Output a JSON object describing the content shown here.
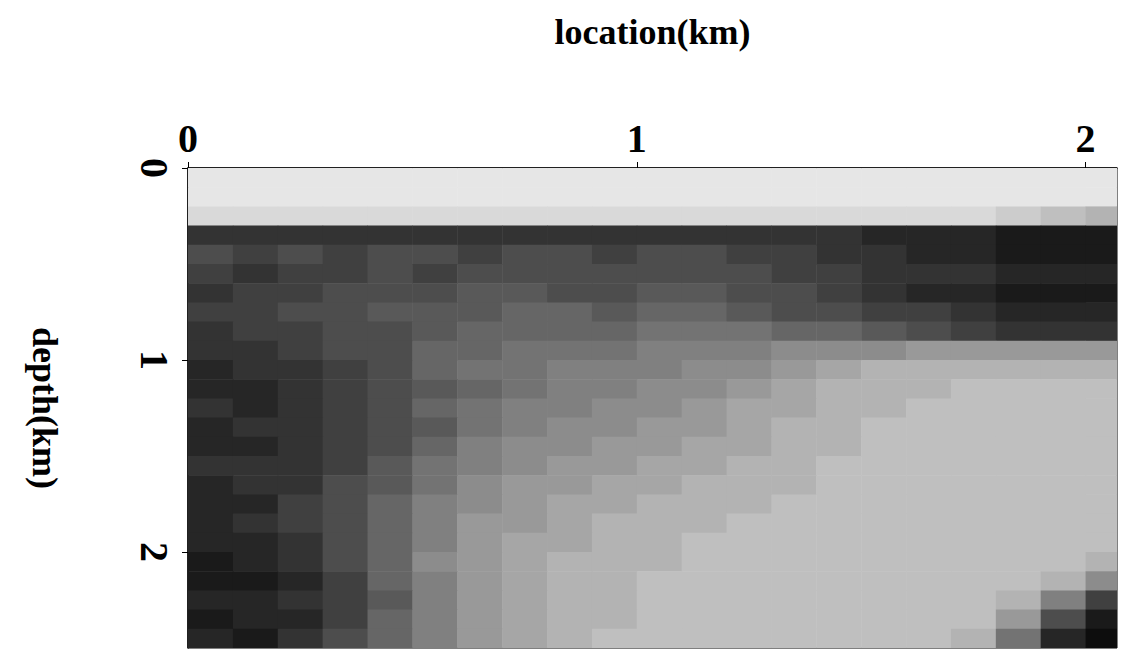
{
  "chart_data": {
    "type": "heatmap",
    "xlabel": "location(km)",
    "ylabel": "depth(km)",
    "x": [
      0.05,
      0.15,
      0.25,
      0.35,
      0.45,
      0.55,
      0.65,
      0.75,
      0.85,
      0.95,
      1.05,
      1.15,
      1.25,
      1.35,
      1.45,
      1.55,
      1.65,
      1.75,
      1.85,
      1.95,
      2.05
    ],
    "y": [
      0.05,
      0.15,
      0.25,
      0.35,
      0.45,
      0.55,
      0.65,
      0.75,
      0.85,
      0.95,
      1.05,
      1.15,
      1.25,
      1.35,
      1.45,
      1.55,
      1.65,
      1.75,
      1.85,
      1.95,
      2.05,
      2.15,
      2.25,
      2.35,
      2.45
    ],
    "values": [
      [
        0.1,
        0.1,
        0.1,
        0.1,
        0.1,
        0.1,
        0.1,
        0.1,
        0.1,
        0.1,
        0.1,
        0.1,
        0.1,
        0.1,
        0.1,
        0.1,
        0.1,
        0.1,
        0.1,
        0.1,
        0.1
      ],
      [
        0.1,
        0.1,
        0.1,
        0.1,
        0.1,
        0.1,
        0.1,
        0.1,
        0.1,
        0.1,
        0.1,
        0.1,
        0.1,
        0.1,
        0.1,
        0.1,
        0.1,
        0.1,
        0.1,
        0.1,
        0.1
      ],
      [
        0.15,
        0.15,
        0.15,
        0.15,
        0.15,
        0.15,
        0.15,
        0.15,
        0.15,
        0.15,
        0.15,
        0.15,
        0.15,
        0.15,
        0.15,
        0.15,
        0.15,
        0.15,
        0.2,
        0.25,
        0.3
      ],
      [
        0.8,
        0.8,
        0.8,
        0.8,
        0.8,
        0.8,
        0.8,
        0.8,
        0.8,
        0.8,
        0.8,
        0.8,
        0.8,
        0.8,
        0.8,
        0.85,
        0.85,
        0.85,
        0.9,
        0.9,
        0.9
      ],
      [
        0.7,
        0.75,
        0.7,
        0.75,
        0.7,
        0.7,
        0.75,
        0.7,
        0.7,
        0.75,
        0.7,
        0.7,
        0.75,
        0.75,
        0.8,
        0.8,
        0.85,
        0.85,
        0.9,
        0.9,
        0.9
      ],
      [
        0.75,
        0.8,
        0.75,
        0.75,
        0.7,
        0.75,
        0.7,
        0.7,
        0.7,
        0.7,
        0.7,
        0.7,
        0.7,
        0.75,
        0.75,
        0.8,
        0.8,
        0.8,
        0.85,
        0.85,
        0.85
      ],
      [
        0.8,
        0.75,
        0.75,
        0.7,
        0.7,
        0.7,
        0.65,
        0.65,
        0.7,
        0.7,
        0.65,
        0.65,
        0.7,
        0.7,
        0.75,
        0.8,
        0.85,
        0.85,
        0.9,
        0.9,
        0.9
      ],
      [
        0.75,
        0.75,
        0.7,
        0.7,
        0.65,
        0.65,
        0.65,
        0.6,
        0.6,
        0.65,
        0.6,
        0.6,
        0.65,
        0.7,
        0.7,
        0.75,
        0.75,
        0.8,
        0.85,
        0.85,
        0.85
      ],
      [
        0.8,
        0.75,
        0.75,
        0.7,
        0.7,
        0.65,
        0.6,
        0.6,
        0.6,
        0.6,
        0.55,
        0.55,
        0.55,
        0.6,
        0.6,
        0.65,
        0.7,
        0.75,
        0.8,
        0.8,
        0.8
      ],
      [
        0.8,
        0.8,
        0.75,
        0.7,
        0.7,
        0.6,
        0.6,
        0.55,
        0.55,
        0.55,
        0.5,
        0.5,
        0.5,
        0.45,
        0.45,
        0.45,
        0.4,
        0.4,
        0.4,
        0.4,
        0.4
      ],
      [
        0.85,
        0.8,
        0.8,
        0.75,
        0.7,
        0.6,
        0.55,
        0.55,
        0.5,
        0.5,
        0.5,
        0.45,
        0.45,
        0.4,
        0.35,
        0.3,
        0.3,
        0.3,
        0.3,
        0.3,
        0.3
      ],
      [
        0.85,
        0.85,
        0.8,
        0.75,
        0.7,
        0.65,
        0.6,
        0.55,
        0.5,
        0.5,
        0.45,
        0.45,
        0.4,
        0.35,
        0.3,
        0.3,
        0.3,
        0.25,
        0.25,
        0.25,
        0.25
      ],
      [
        0.8,
        0.85,
        0.8,
        0.75,
        0.7,
        0.6,
        0.55,
        0.5,
        0.5,
        0.45,
        0.45,
        0.4,
        0.35,
        0.35,
        0.3,
        0.3,
        0.25,
        0.25,
        0.25,
        0.25,
        0.25
      ],
      [
        0.85,
        0.8,
        0.8,
        0.75,
        0.7,
        0.65,
        0.55,
        0.5,
        0.45,
        0.45,
        0.4,
        0.4,
        0.35,
        0.3,
        0.3,
        0.25,
        0.25,
        0.25,
        0.25,
        0.25,
        0.25
      ],
      [
        0.85,
        0.85,
        0.8,
        0.75,
        0.7,
        0.6,
        0.5,
        0.45,
        0.45,
        0.4,
        0.4,
        0.35,
        0.35,
        0.3,
        0.3,
        0.25,
        0.25,
        0.25,
        0.25,
        0.25,
        0.25
      ],
      [
        0.8,
        0.8,
        0.8,
        0.75,
        0.65,
        0.55,
        0.5,
        0.45,
        0.4,
        0.4,
        0.35,
        0.35,
        0.3,
        0.3,
        0.25,
        0.25,
        0.25,
        0.25,
        0.25,
        0.25,
        0.25
      ],
      [
        0.85,
        0.8,
        0.8,
        0.7,
        0.65,
        0.55,
        0.45,
        0.4,
        0.4,
        0.35,
        0.35,
        0.3,
        0.3,
        0.3,
        0.25,
        0.25,
        0.25,
        0.25,
        0.25,
        0.25,
        0.25
      ],
      [
        0.85,
        0.85,
        0.75,
        0.7,
        0.6,
        0.5,
        0.45,
        0.4,
        0.35,
        0.35,
        0.3,
        0.3,
        0.3,
        0.25,
        0.25,
        0.25,
        0.25,
        0.25,
        0.25,
        0.25,
        0.25
      ],
      [
        0.85,
        0.8,
        0.75,
        0.7,
        0.6,
        0.5,
        0.4,
        0.4,
        0.35,
        0.3,
        0.3,
        0.3,
        0.25,
        0.25,
        0.25,
        0.25,
        0.25,
        0.25,
        0.25,
        0.25,
        0.25
      ],
      [
        0.85,
        0.85,
        0.8,
        0.7,
        0.6,
        0.5,
        0.4,
        0.35,
        0.35,
        0.3,
        0.3,
        0.25,
        0.25,
        0.25,
        0.25,
        0.25,
        0.25,
        0.25,
        0.25,
        0.25,
        0.25
      ],
      [
        0.9,
        0.85,
        0.8,
        0.7,
        0.6,
        0.45,
        0.4,
        0.35,
        0.3,
        0.3,
        0.3,
        0.25,
        0.25,
        0.25,
        0.25,
        0.25,
        0.25,
        0.25,
        0.25,
        0.25,
        0.3
      ],
      [
        0.9,
        0.9,
        0.85,
        0.75,
        0.6,
        0.5,
        0.4,
        0.35,
        0.3,
        0.3,
        0.25,
        0.25,
        0.25,
        0.25,
        0.25,
        0.25,
        0.25,
        0.25,
        0.25,
        0.3,
        0.45
      ],
      [
        0.85,
        0.85,
        0.8,
        0.75,
        0.65,
        0.5,
        0.4,
        0.35,
        0.3,
        0.3,
        0.25,
        0.25,
        0.25,
        0.25,
        0.25,
        0.25,
        0.25,
        0.25,
        0.3,
        0.5,
        0.75
      ],
      [
        0.9,
        0.85,
        0.85,
        0.75,
        0.6,
        0.5,
        0.4,
        0.35,
        0.3,
        0.3,
        0.25,
        0.25,
        0.25,
        0.25,
        0.25,
        0.25,
        0.25,
        0.25,
        0.4,
        0.7,
        0.9
      ],
      [
        0.85,
        0.9,
        0.8,
        0.7,
        0.6,
        0.5,
        0.4,
        0.35,
        0.3,
        0.25,
        0.25,
        0.25,
        0.25,
        0.25,
        0.25,
        0.25,
        0.25,
        0.3,
        0.55,
        0.85,
        0.95
      ]
    ],
    "value_range": [
      0,
      1
    ],
    "color": "#000000",
    "xlim": [
      0,
      2.07
    ],
    "ylim": [
      0,
      2.5
    ],
    "xticks": [
      0,
      1,
      2
    ],
    "yticks": [
      0,
      1,
      2
    ],
    "grid": false
  }
}
